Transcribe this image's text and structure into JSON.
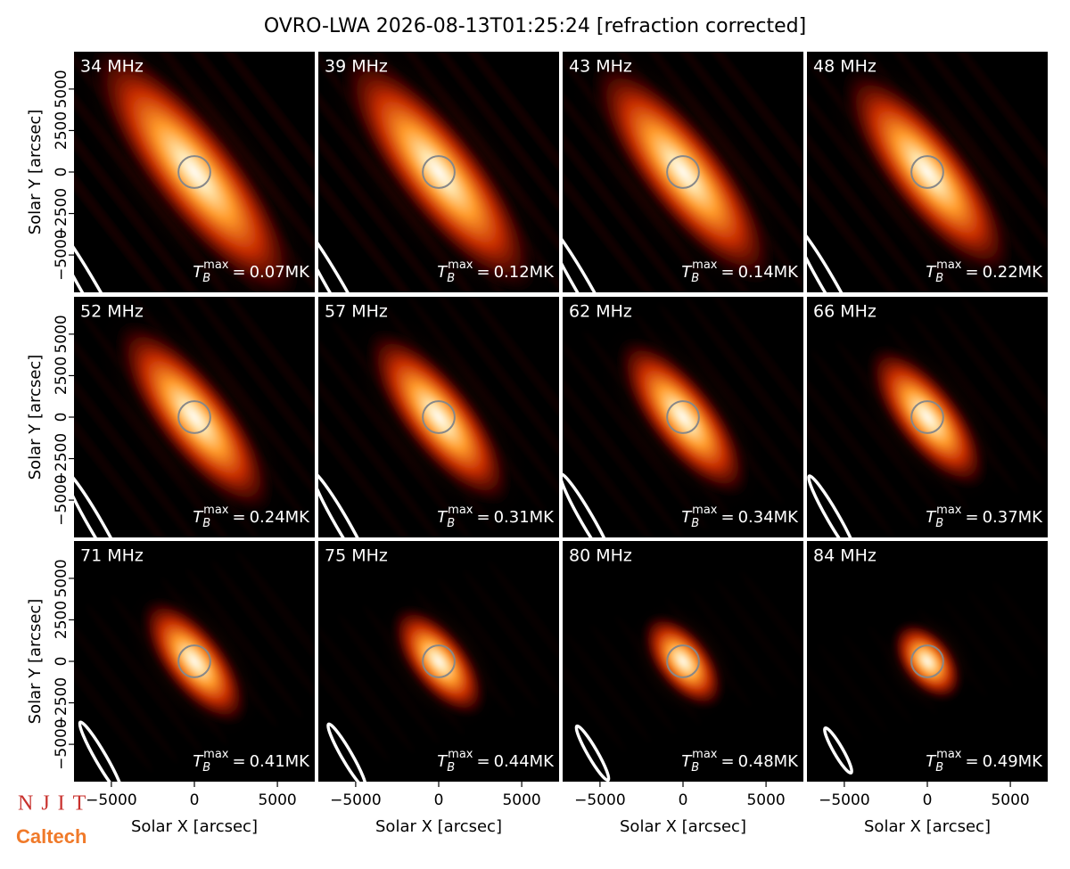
{
  "chart_data": {
    "type": "image_grid",
    "title": "OVRO-LWA 2026-08-13T01:25:24 [refraction corrected]",
    "xlabel": "Solar X [arcsec]",
    "ylabel": "Solar Y [arcsec]",
    "xlim": [
      -7250,
      7250
    ],
    "ylim": [
      -7250,
      7250
    ],
    "xticks": [
      {
        "value": -5000,
        "label": "−5000"
      },
      0,
      5000
    ],
    "yticks": [
      {
        "value": -5000,
        "label": "−5000"
      },
      {
        "value": -2500,
        "label": "−2500"
      },
      0,
      2500,
      5000
    ],
    "columns": 4,
    "tb_symbol": {
      "base": "T",
      "sub": "B",
      "sup": "max",
      "relation": "="
    },
    "panels": [
      {
        "label": "34 MHz",
        "tb_max": "0.07MK"
      },
      {
        "label": "39 MHz",
        "tb_max": "0.12MK"
      },
      {
        "label": "43 MHz",
        "tb_max": "0.14MK"
      },
      {
        "label": "48 MHz",
        "tb_max": "0.22MK"
      },
      {
        "label": "52 MHz",
        "tb_max": "0.24MK"
      },
      {
        "label": "57 MHz",
        "tb_max": "0.31MK"
      },
      {
        "label": "62 MHz",
        "tb_max": "0.34MK"
      },
      {
        "label": "66 MHz",
        "tb_max": "0.37MK"
      },
      {
        "label": "71 MHz",
        "tb_max": "0.41MK"
      },
      {
        "label": "75 MHz",
        "tb_max": "0.44MK"
      },
      {
        "label": "80 MHz",
        "tb_max": "0.48MK"
      },
      {
        "label": "84 MHz",
        "tb_max": "0.49MK"
      }
    ]
  },
  "logos": [
    "NJIT",
    "Caltech"
  ]
}
